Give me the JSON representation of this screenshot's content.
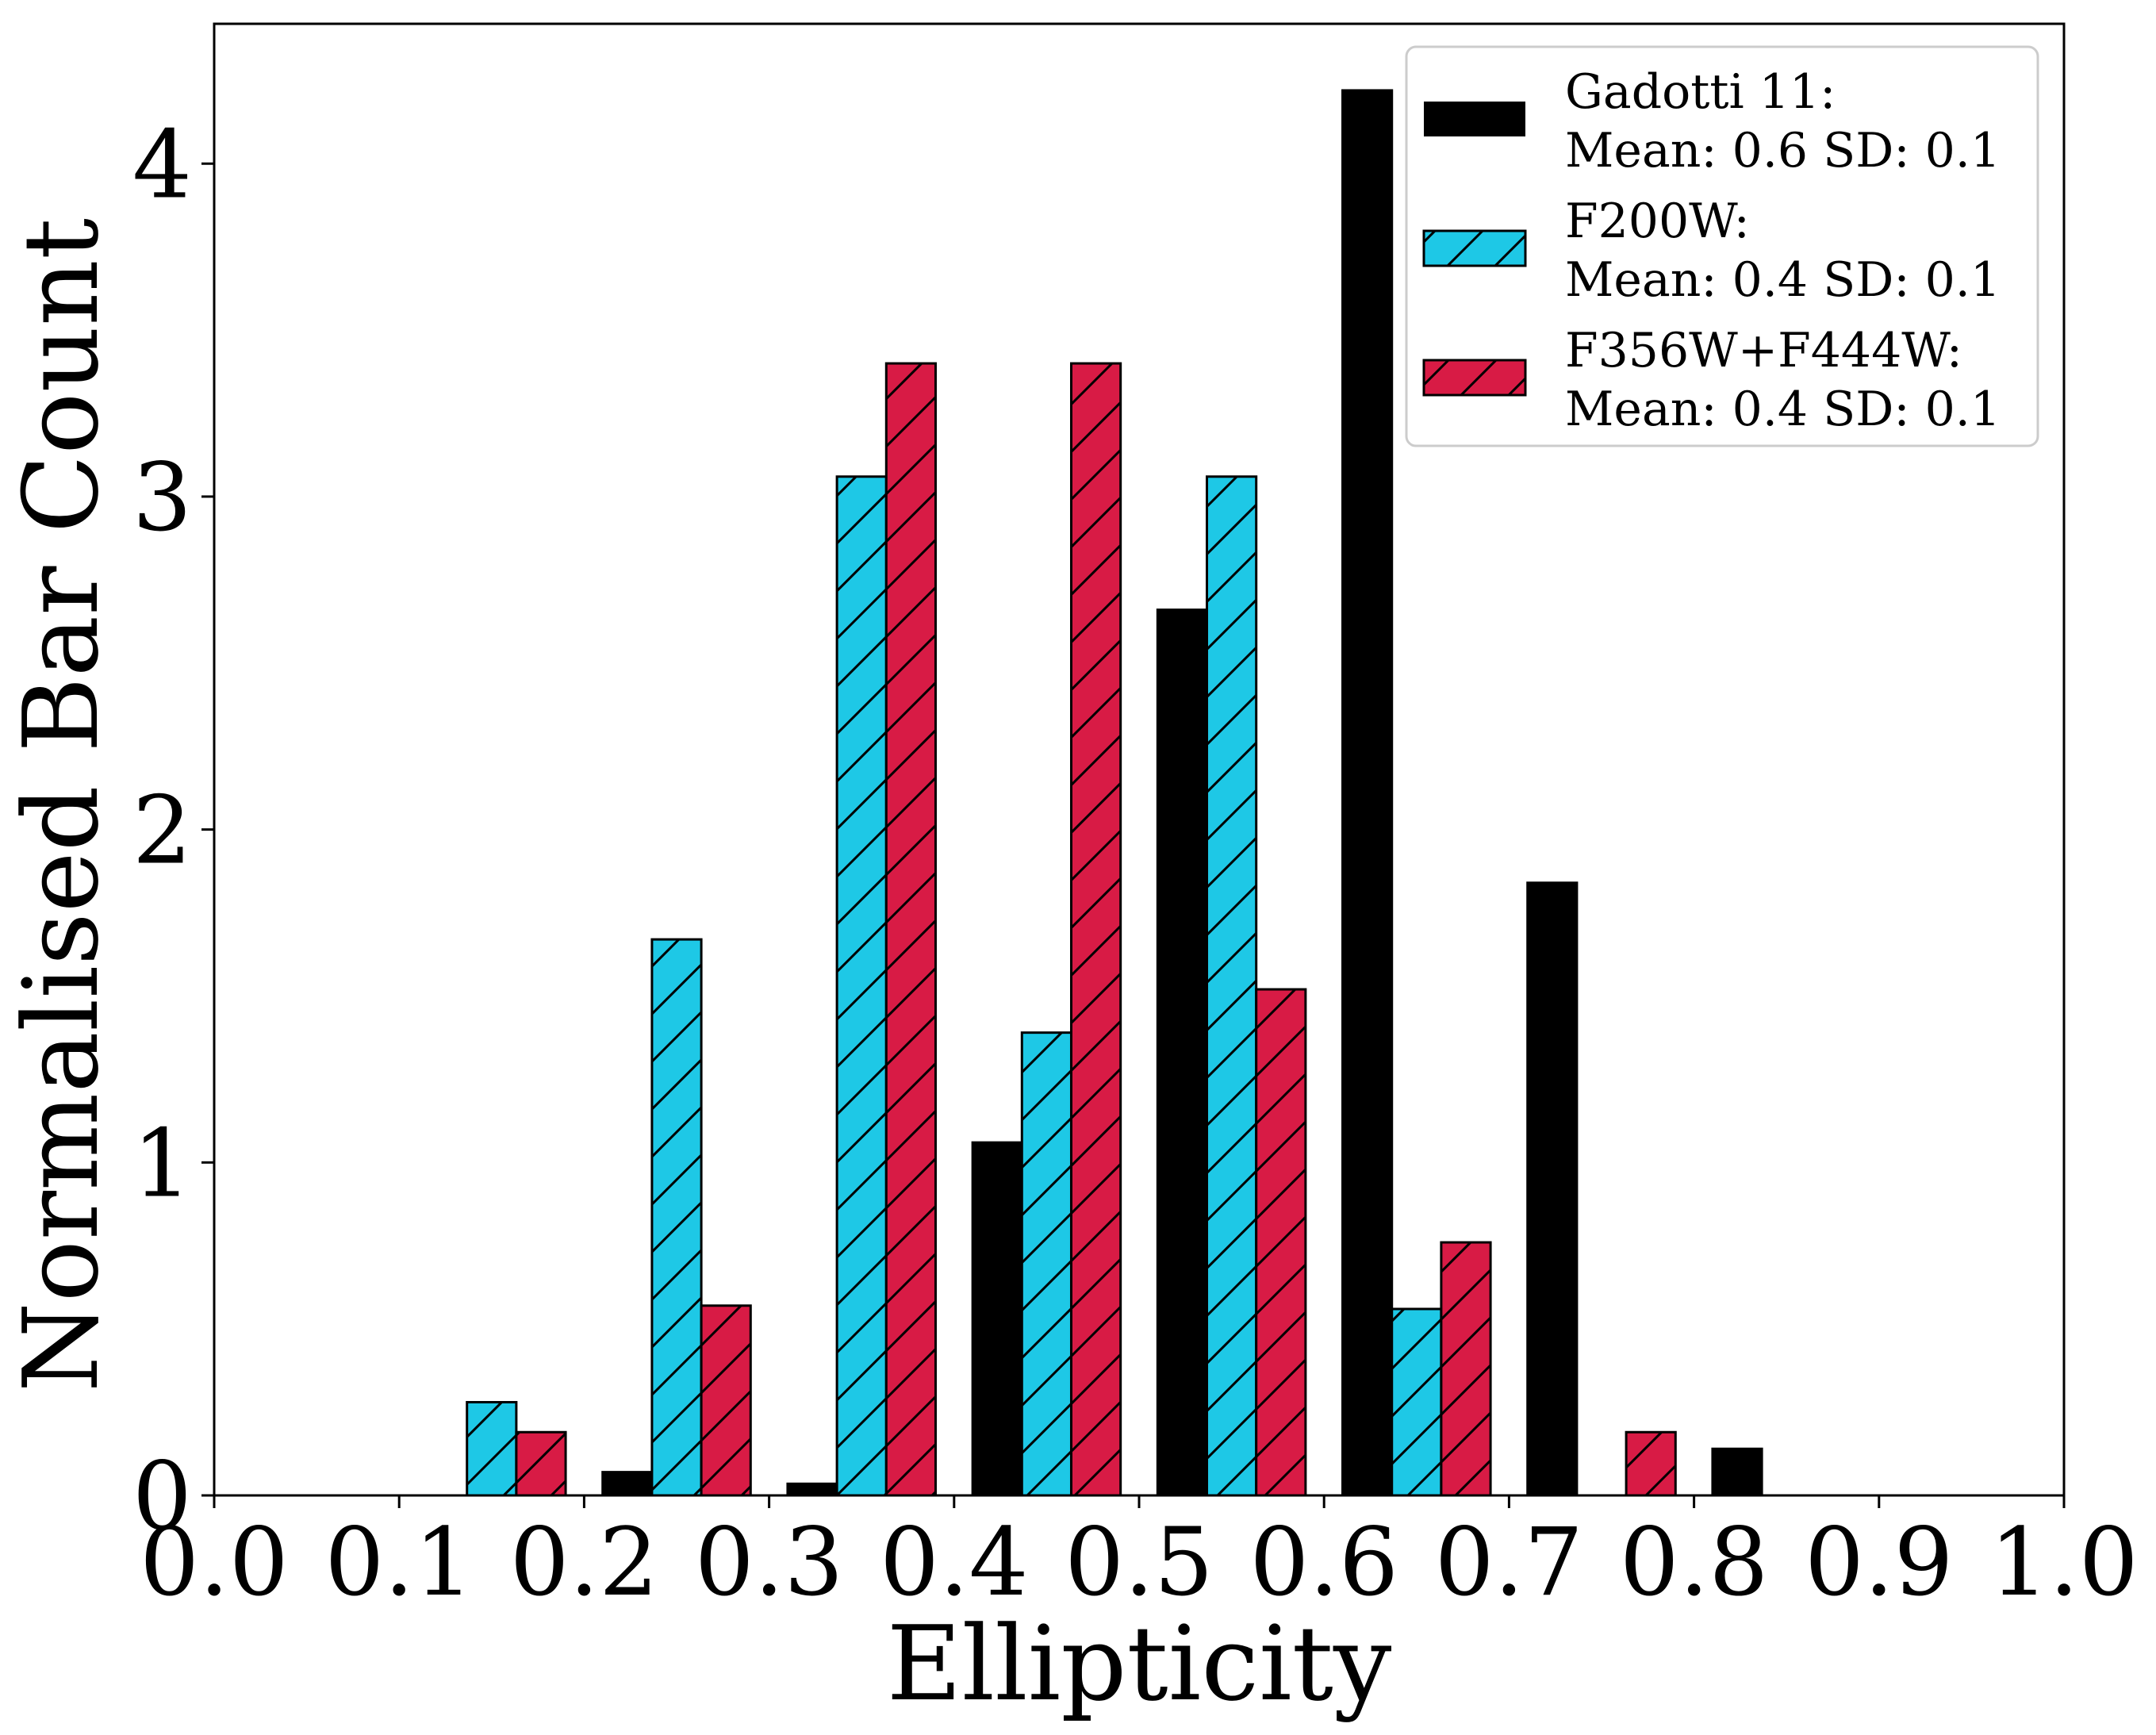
{
  "chart_data": {
    "type": "bar",
    "xlabel": "Ellipticity",
    "ylabel": "Normalised Bar Count",
    "xlim": [
      0.0,
      1.0
    ],
    "ylim": [
      0,
      4.42
    ],
    "xticks": [
      "0.0",
      "0.1",
      "0.2",
      "0.3",
      "0.4",
      "0.5",
      "0.6",
      "0.7",
      "0.8",
      "0.9",
      "1.0"
    ],
    "yticks": [
      "0",
      "1",
      "2",
      "3",
      "4"
    ],
    "grid": false,
    "legend_position": "top-right",
    "bin_edges": [
      0.0,
      0.1,
      0.2,
      0.3,
      0.4,
      0.5,
      0.6,
      0.7,
      0.8,
      0.9,
      1.0
    ],
    "series": [
      {
        "name": "Gadotti 11:",
        "stats": "Mean: 0.6 SD: 0.1",
        "color": "#000000",
        "hatch": false,
        "values": [
          0.0,
          0.0,
          0.07,
          0.035,
          1.06,
          2.66,
          4.22,
          1.84,
          0.14,
          0.0
        ]
      },
      {
        "name": "F200W:",
        "stats": "Mean: 0.4 SD: 0.1",
        "color": "#1ec8e6",
        "hatch": true,
        "values": [
          0.0,
          0.28,
          1.67,
          3.06,
          1.39,
          3.06,
          0.56,
          0.0,
          0.0,
          0.0
        ]
      },
      {
        "name": "F356W+F444W:",
        "stats": "Mean: 0.4 SD: 0.1",
        "color": "#d81b45",
        "hatch": true,
        "values": [
          0.0,
          0.19,
          0.57,
          3.4,
          3.4,
          1.52,
          0.76,
          0.19,
          0.0,
          0.0
        ]
      }
    ]
  }
}
